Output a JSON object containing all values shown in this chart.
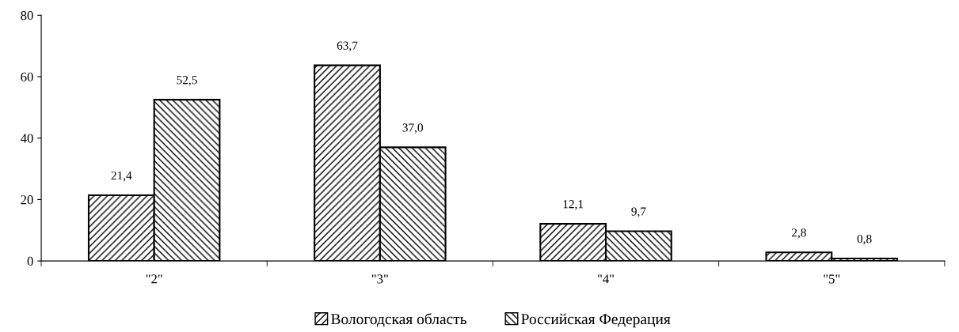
{
  "chart_data": {
    "type": "bar",
    "categories": [
      "\"2\"",
      "\"3\"",
      "\"4\"",
      "\"5\""
    ],
    "series": [
      {
        "name": "Вологодская область",
        "color": "#000000",
        "values": [
          21.4,
          63.7,
          12.1,
          2.8
        ],
        "value_labels": [
          "21,4",
          "63,7",
          "12,1",
          "2,8"
        ]
      },
      {
        "name": "Российская Федерация",
        "color": "#000000",
        "values": [
          52.5,
          37.0,
          9.7,
          0.8
        ],
        "value_labels": [
          "52,5",
          "37,0",
          "9,7",
          "0,8"
        ]
      }
    ],
    "ylim": [
      0,
      80
    ],
    "yticks": [
      0,
      20,
      40,
      60,
      80
    ],
    "grid": false,
    "legend": "bottom"
  }
}
